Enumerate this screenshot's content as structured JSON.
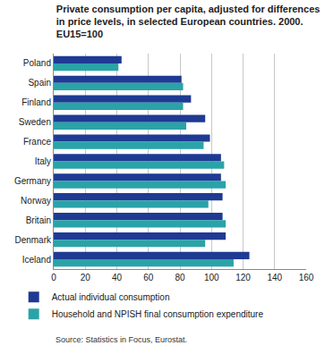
{
  "chart_data": {
    "type": "bar",
    "orientation": "horizontal",
    "title": "Private consumption per capita, adjusted for differences\nin price levels, in selected European countries. 2000.\nEU15=100",
    "categories": [
      "Poland",
      "Spain",
      "Finland",
      "Sweden",
      "France",
      "Italy",
      "Germany",
      "Norway",
      "Britain",
      "Denmark",
      "Iceland"
    ],
    "series": [
      {
        "name": "Actual individual consumption",
        "color": "#1f3a93",
        "values": [
          43,
          81,
          87,
          96,
          99,
          106,
          106,
          107,
          107,
          109,
          124
        ]
      },
      {
        "name": "Household and NPISH final consumption expenditure",
        "color": "#2aa3a8",
        "values": [
          41,
          82,
          82,
          84,
          95,
          108,
          109,
          98,
          109,
          96,
          114
        ]
      }
    ],
    "xlim": [
      0,
      160
    ],
    "xticks": [
      0,
      20,
      40,
      60,
      80,
      100,
      120,
      140,
      160
    ],
    "grid": true,
    "legend": "bottom",
    "annotations": [
      "Source: Statistics in Focus, Eurostat."
    ]
  }
}
